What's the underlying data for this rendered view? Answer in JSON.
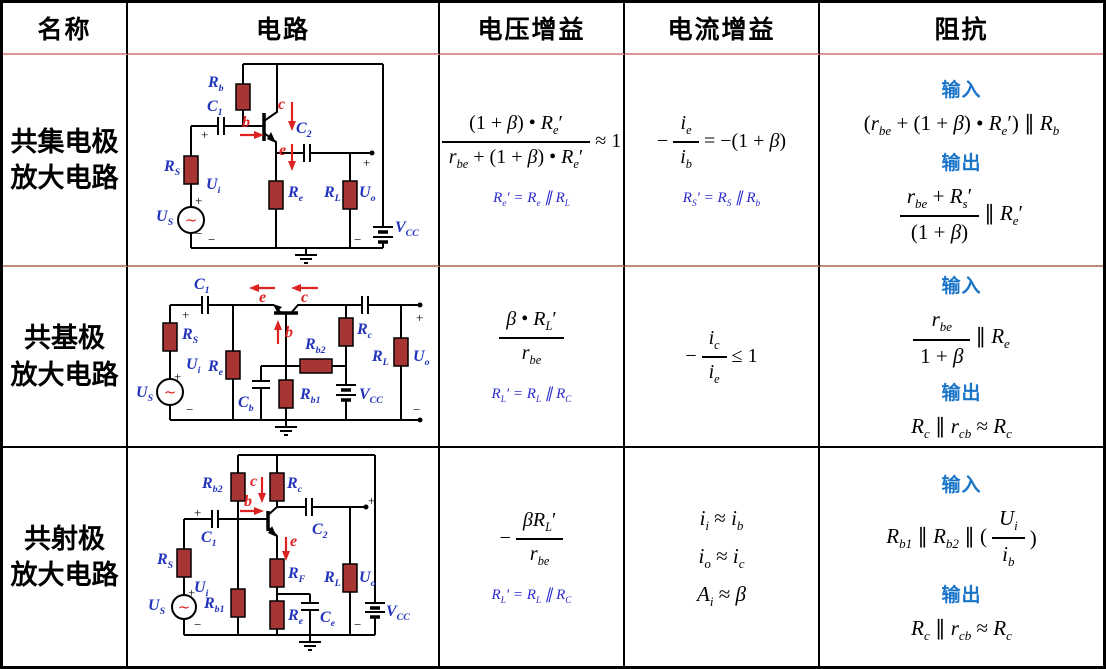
{
  "header": {
    "name": "名称",
    "circuit": "电路",
    "voltage_gain": "电压增益",
    "current_gain": "电流增益",
    "impedance": "阻抗"
  },
  "colors": {
    "io_blue": "#1a74c8",
    "note_blue": "#2929cc",
    "circuit_label_blue": "#2233bb",
    "arrow_red": "#dd2222",
    "resistor_fill": "#a83434",
    "separator_pink": "#e09494",
    "wire_black": "#000000"
  },
  "sym": {
    "Rb": "<i>R</i><sub>b</sub>",
    "Rb1": "<i>R</i><sub>b1</sub>",
    "Rb2": "<i>R</i><sub>b2</sub>",
    "Rc": "<i>R</i><sub>c</sub>",
    "Re": "<i>R</i><sub>e</sub>",
    "RF": "<i>R</i><sub>F</sub>",
    "RL": "<i>R</i><sub>L</sub>",
    "RS": "<i>R</i><sub>S</sub>",
    "C1": "<i>C</i><sub>1</sub>",
    "C2": "<i>C</i><sub>2</sub>",
    "Cb": "<i>C</i><sub>b</sub>",
    "Ce": "<i>C</i><sub>e</sub>",
    "Ui": "<i>U</i><sub>i</sub>",
    "Uo": "<i>U</i><sub>o</sub>",
    "US": "<i>U</i><sub>S</sub>",
    "Vcc": "<i>V</i><sub>CC</sub>",
    "b": "b",
    "c": "c",
    "e": "e",
    "plus": "+",
    "minus": "−"
  },
  "rows": [
    {
      "name1": "共集电极",
      "name2": "放大电路",
      "voltage": {
        "num": "(1 + <i>β</i>) • <i>R</i><sub>e</sub>′",
        "den": "<i>r</i><sub>be</sub> + (1 + <i>β</i>) • <i>R</i><sub>e</sub>′",
        "suffix": "≈ 1",
        "note": "<i>R</i><sub>e</sub>′ = <i>R</i><sub>e</sub> ∥ <i>R</i><sub>L</sub>"
      },
      "current": {
        "prefix": "−",
        "num": "<i>i</i><sub>e</sub>",
        "den": "<i>i</i><sub>b</sub>",
        "suffix": "= −(1 + <i>β</i>)",
        "note": "<i>R</i><sub>S</sub>′ = <i>R</i><sub>S</sub> ∥ <i>R</i><sub>b</sub>"
      },
      "impedance": {
        "in_label": "输入",
        "in_expr": "(<i>r</i><sub>be</sub> + (1 + <i>β</i>) • <i>R</i><sub>e</sub>′) ∥ <i>R</i><sub>b</sub>",
        "out_label": "输出",
        "out_num": "<i>r</i><sub>be</sub> + <i>R</i><sub>s</sub>′",
        "out_den": "(1 + <i>β</i>)",
        "out_suffix": "∥ <i>R</i><sub>e</sub>′"
      }
    },
    {
      "name1": "共基极",
      "name2": "放大电路",
      "voltage": {
        "num": "<i>β</i> • <i>R</i><sub>L</sub>′",
        "den": "<i>r</i><sub>be</sub>",
        "note": "<i>R</i><sub>L</sub>′ = <i>R</i><sub>L</sub> ∥ <i>R</i><sub>C</sub>"
      },
      "current": {
        "prefix": "−",
        "num": "<i>i</i><sub>c</sub>",
        "den": "<i>i</i><sub>e</sub>",
        "suffix": "≤ 1"
      },
      "impedance": {
        "in_label": "输入",
        "in_num": "<i>r</i><sub>be</sub>",
        "in_den": "1 + <i>β</i>",
        "in_suffix": "∥ <i>R</i><sub>e</sub>",
        "out_label": "输出",
        "out_expr": "<i>R</i><sub>c</sub> ∥ <i>r</i><sub>cb</sub> ≈ <i>R</i><sub>c</sub>"
      }
    },
    {
      "name1": "共射极",
      "name2": "放大电路",
      "voltage": {
        "prefix": "−",
        "num": "<i>βR</i><sub>L</sub>′",
        "den": "<i>r</i><sub>be</sub>",
        "note": "<i>R</i><sub>L</sub>′ = <i>R</i><sub>L</sub> ∥ <i>R</i><sub>C</sub>"
      },
      "current": {
        "lines": [
          "<i>i</i><sub>i</sub> ≈ <i>i</i><sub>b</sub>",
          "<i>i</i><sub>o</sub> ≈ <i>i</i><sub>c</sub>",
          "<i>A</i><sub>i</sub> ≈ <i>β</i>"
        ]
      },
      "impedance": {
        "in_label": "输入",
        "in_prefix": "<i>R</i><sub>b1</sub> ∥ <i>R</i><sub>b2</sub> ∥ (",
        "in_num": "<i>U</i><sub>i</sub>",
        "in_den": "<i>i</i><sub>b</sub>",
        "in_suffix": ")",
        "out_label": "输出",
        "out_expr": "<i>R</i><sub>c</sub> ∥ <i>r</i><sub>cb</sub> ≈ <i>R</i><sub>c</sub>"
      }
    }
  ]
}
